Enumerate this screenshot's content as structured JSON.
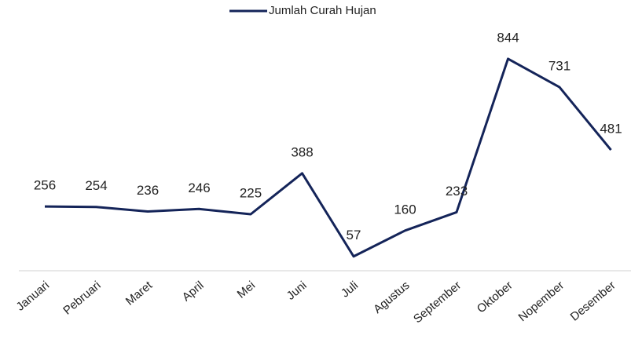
{
  "chart_data": {
    "type": "line",
    "categories": [
      "Januari",
      "Pebruari",
      "Maret",
      "April",
      "Mei",
      "Juni",
      "Juli",
      "Agustus",
      "September",
      "Oktober",
      "Nopember",
      "Desember"
    ],
    "series": [
      {
        "name": "Jumlah Curah Hujan",
        "color": "#142459",
        "values": [
          256,
          254,
          236,
          246,
          225,
          388,
          57,
          160,
          233,
          844,
          731,
          481
        ]
      }
    ],
    "ylim": [
      0,
      900
    ],
    "legend": "top"
  }
}
